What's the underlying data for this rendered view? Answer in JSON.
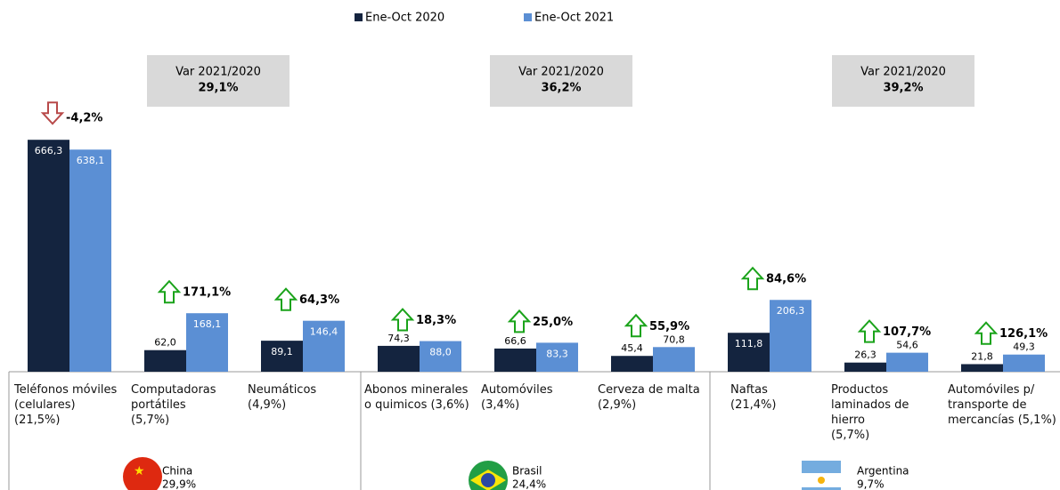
{
  "chart_data": {
    "type": "bar",
    "categories": [
      "Teléfonos móviles\n(celulares)\n(21,5%)",
      "Computadoras\nportátiles\n(5,7%)",
      "Neumáticos\n(4,9%)",
      "Abonos minerales\no quimicos (3,6%)",
      "Automóviles\n(3,4%)",
      "Cerveza de malta\n(2,9%)",
      "Naftas\n(21,4%)",
      "Productos\nlaminados de\nhierro\n(5,7%)",
      "Automóviles p/\ntransporte de\nmercancías (5,1%)"
    ],
    "series": [
      {
        "name": "Ene-Oct 2020",
        "color": "#14243f",
        "values": [
          666.3,
          62.0,
          89.1,
          74.3,
          66.6,
          45.4,
          111.8,
          26.3,
          21.8
        ],
        "value_labels": [
          "666,3",
          "62,0",
          "89,1",
          "74,3",
          "66,6",
          "45,4",
          "111,8",
          "26,3",
          "21,8"
        ]
      },
      {
        "name": "Ene-Oct 2021",
        "color": "#5b8fd4",
        "values": [
          638.1,
          168.1,
          146.4,
          88.0,
          83.3,
          70.8,
          206.3,
          54.6,
          49.3
        ],
        "value_labels": [
          "638,1",
          "168,1",
          "146,4",
          "88,0",
          "83,3",
          "70,8",
          "206,3",
          "54,6",
          "49,3"
        ]
      }
    ],
    "changes": [
      {
        "value": -4.2,
        "label": "-4,2%"
      },
      {
        "value": 171.1,
        "label": "171,1%"
      },
      {
        "value": 64.3,
        "label": "64,3%"
      },
      {
        "value": 18.3,
        "label": "18,3%"
      },
      {
        "value": 25.0,
        "label": "25,0%"
      },
      {
        "value": 55.9,
        "label": "55,9%"
      },
      {
        "value": 84.6,
        "label": "84,6%"
      },
      {
        "value": 107.7,
        "label": "107,7%"
      },
      {
        "value": 126.1,
        "label": "126,1%"
      }
    ],
    "groups": [
      {
        "country": "China",
        "share": "29,9%",
        "var_title": "Var 2021/2020",
        "var_value": "29,1%"
      },
      {
        "country": "Brasil",
        "share": "24,4%",
        "var_title": "Var 2021/2020",
        "var_value": "36,2%"
      },
      {
        "country": "Argentina",
        "share": "9,7%",
        "var_title": "Var 2021/2020",
        "var_value": "39,2%"
      }
    ],
    "ylim": [
      0,
      700
    ]
  }
}
